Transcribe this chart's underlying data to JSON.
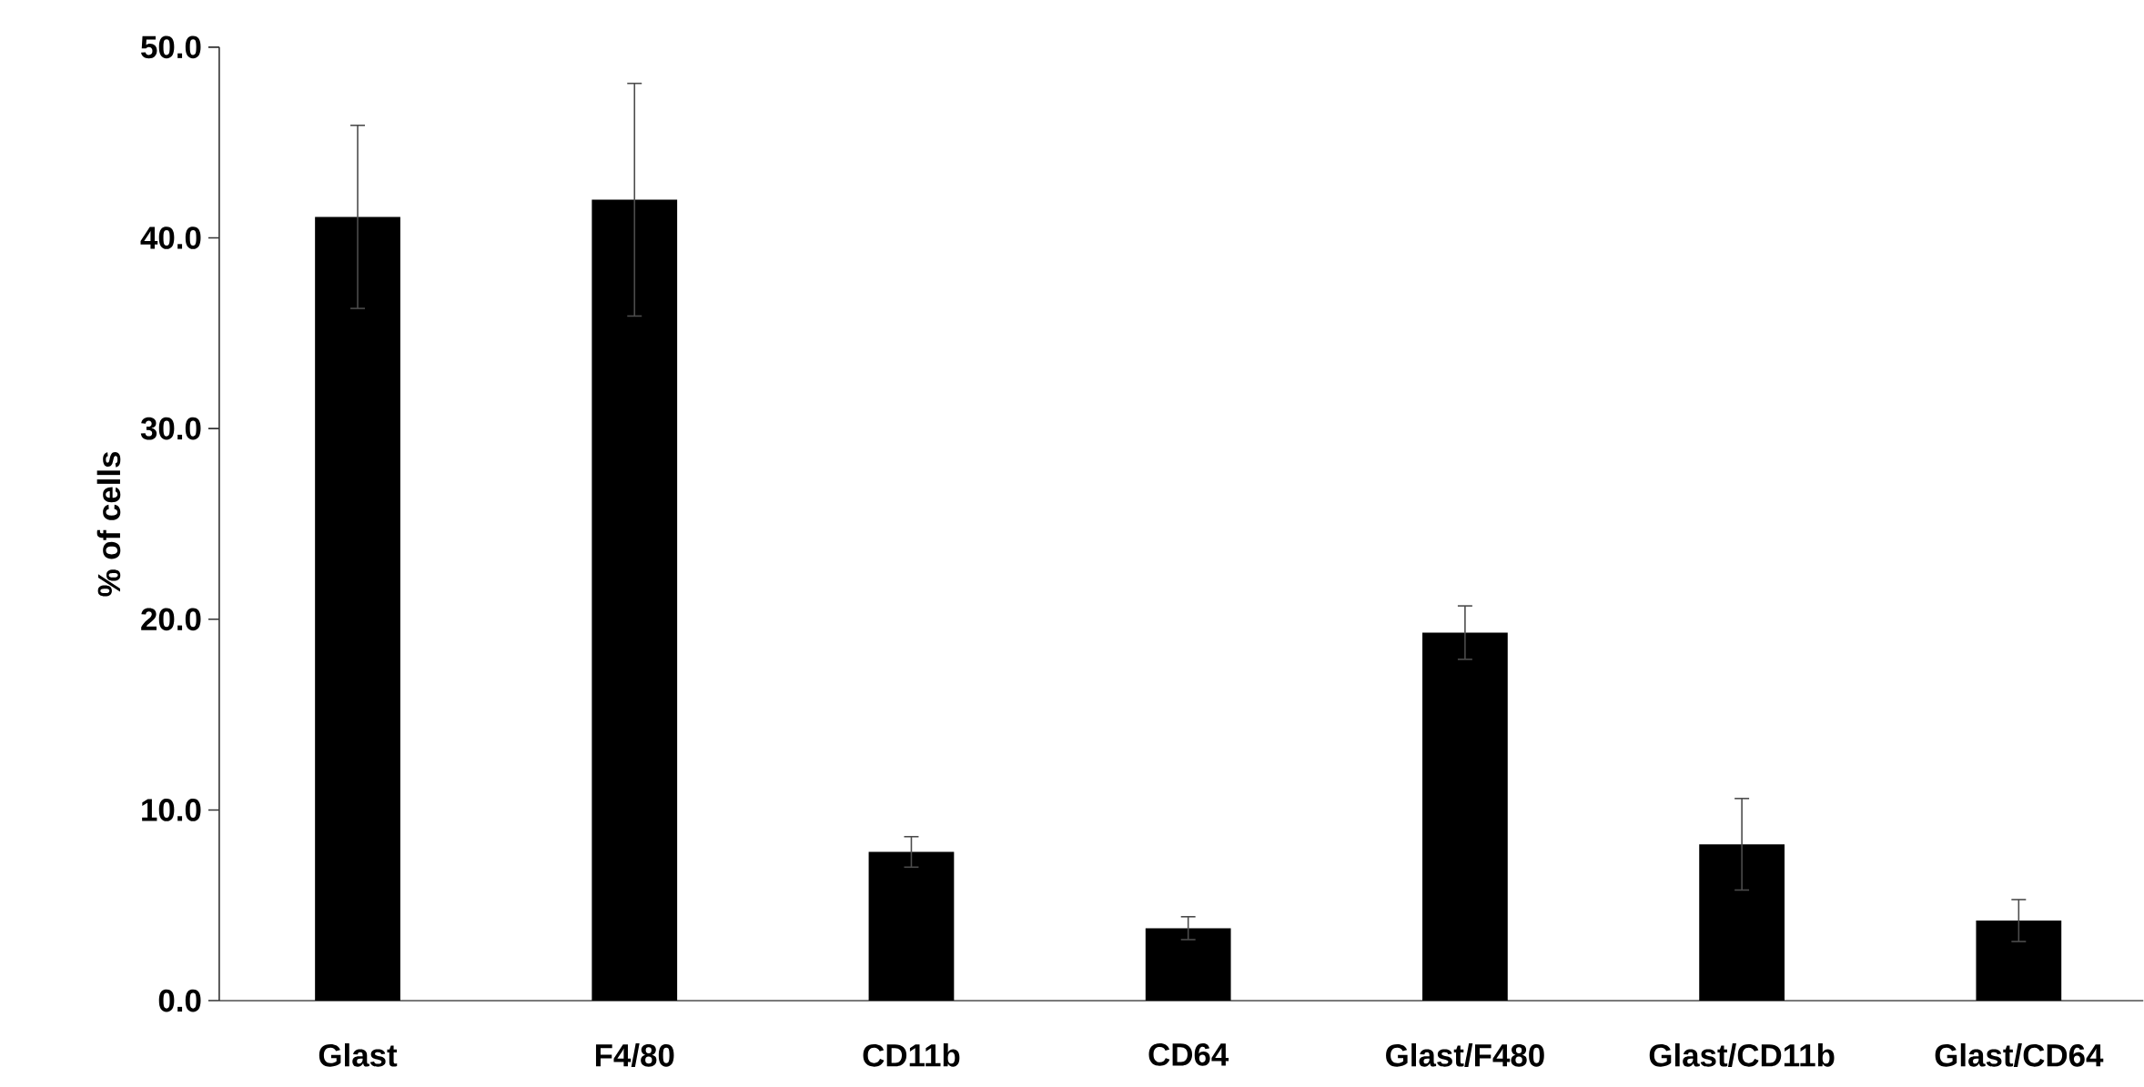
{
  "chart_data": {
    "type": "bar",
    "ylabel": "% of cells",
    "categories": [
      "Glast",
      "F4/80",
      "CD11b",
      "CD64",
      "Glast/F480",
      "Glast/CD11b",
      "Glast/CD64"
    ],
    "values": [
      41.1,
      42.0,
      7.8,
      3.8,
      19.3,
      8.2,
      4.2
    ],
    "errors": [
      4.8,
      6.1,
      0.8,
      0.6,
      1.4,
      2.4,
      1.1
    ],
    "color": "#000000",
    "ylim": [
      0,
      50
    ],
    "yticks": [
      {
        "value": 0,
        "label": "0.0"
      },
      {
        "value": 10,
        "label": "10.0"
      },
      {
        "value": 20,
        "label": "20.0"
      },
      {
        "value": 30,
        "label": "30.0"
      },
      {
        "value": 40,
        "label": "40.0"
      },
      {
        "value": 50,
        "label": "50.0"
      }
    ]
  }
}
